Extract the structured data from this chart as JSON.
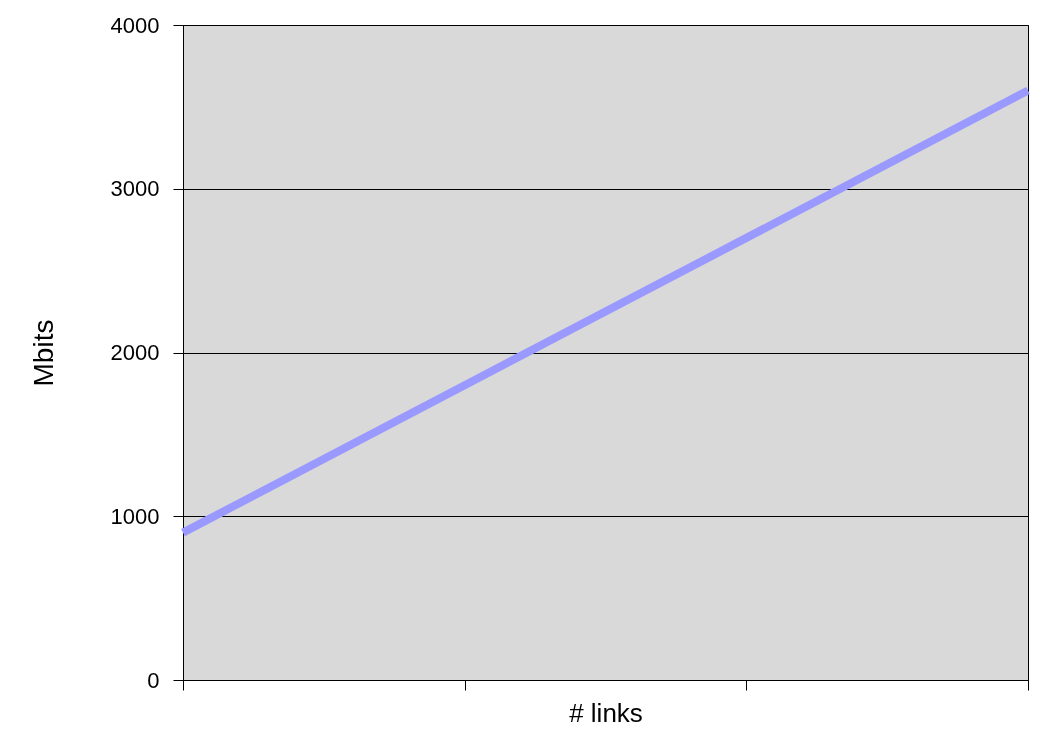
{
  "chart_data": {
    "type": "line",
    "xlabel": "# links",
    "ylabel": "Mbits",
    "categories": [
      null,
      null,
      null,
      null
    ],
    "series": [
      {
        "color": "#9999ff",
        "values": [
          900,
          1800,
          2700,
          3600
        ]
      }
    ],
    "ylim": [
      0,
      4000
    ],
    "yticks": [
      0,
      1000,
      2000,
      3000,
      4000
    ],
    "grid": "y",
    "tick_labels": "y",
    "marker": "none",
    "line_style": "solid"
  }
}
